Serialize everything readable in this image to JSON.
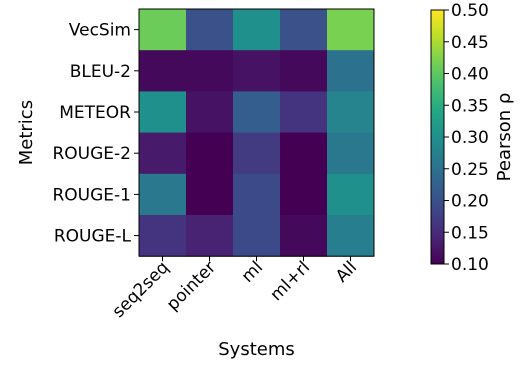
{
  "chart_data": {
    "type": "heatmap",
    "title": "",
    "xlabel": "Systems",
    "ylabel": "Metrics",
    "x_categories": [
      "seq2seq",
      "pointer",
      "ml",
      "ml+rl",
      "All"
    ],
    "y_categories": [
      "VecSim",
      "BLEU-2",
      "METEOR",
      "ROUGE-2",
      "ROUGE-1",
      "ROUGE-L"
    ],
    "values": [
      [
        0.41,
        0.2,
        0.3,
        0.2,
        0.42
      ],
      [
        0.11,
        0.11,
        0.12,
        0.11,
        0.25
      ],
      [
        0.3,
        0.12,
        0.22,
        0.16,
        0.28
      ],
      [
        0.13,
        0.1,
        0.17,
        0.1,
        0.26
      ],
      [
        0.26,
        0.1,
        0.19,
        0.1,
        0.3
      ],
      [
        0.16,
        0.14,
        0.19,
        0.11,
        0.27
      ]
    ],
    "colorbar": {
      "label": "Pearson ρ",
      "range": [
        0.1,
        0.5
      ],
      "ticks": [
        "0.10",
        "0.15",
        "0.20",
        "0.25",
        "0.30",
        "0.35",
        "0.40",
        "0.45",
        "0.50"
      ],
      "colormap": "viridis"
    }
  }
}
